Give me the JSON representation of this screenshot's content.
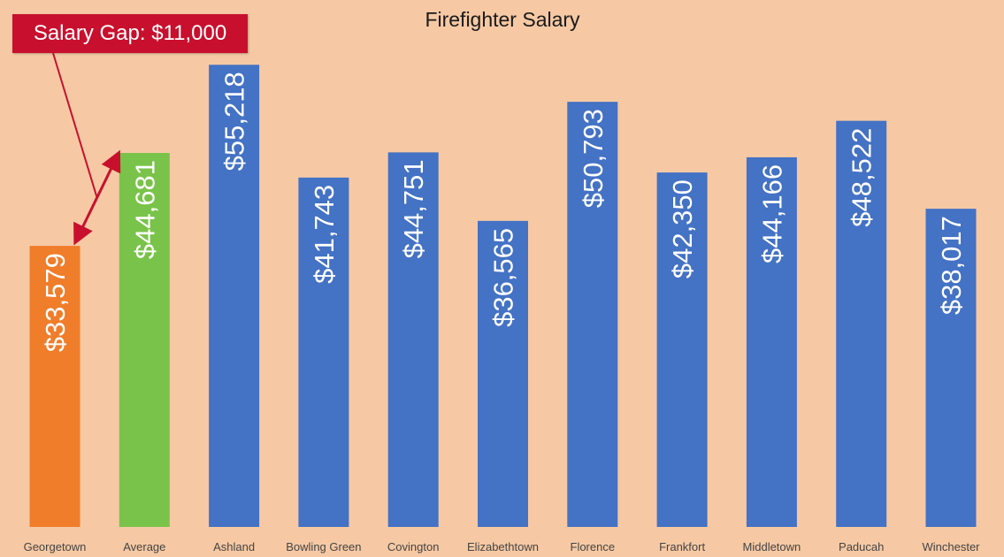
{
  "chart_data": {
    "type": "bar",
    "title": "Firefighter Salary",
    "xlabel": "",
    "ylabel": "",
    "ylim": [
      0,
      60000
    ],
    "grid": false,
    "categories": [
      "Georgetown",
      "Average",
      "Ashland",
      "Bowling Green",
      "Covington",
      "Elizabethtown",
      "Florence",
      "Frankfort",
      "Middletown",
      "Paducah",
      "Winchester"
    ],
    "values": [
      33579,
      44681,
      55218,
      41743,
      44751,
      36565,
      50793,
      42350,
      44166,
      48522,
      38017
    ],
    "data_labels": [
      "$33,579",
      "$44,681",
      "$55,218",
      "$41,743",
      "$44,751",
      "$36,565",
      "$50,793",
      "$42,350",
      "$44,166",
      "$48,522",
      "$38,017"
    ],
    "bar_colors": [
      "#f07d2a",
      "#7ac34a",
      "#4472c4",
      "#4472c4",
      "#4472c4",
      "#4472c4",
      "#4472c4",
      "#4472c4",
      "#4472c4",
      "#4472c4",
      "#4472c4"
    ],
    "annotation": {
      "text": "Salary Gap: $11,000",
      "from_category": "Georgetown",
      "to_category": "Average",
      "color": "#c8102e"
    }
  },
  "colors": {
    "background": "#f6c9a4",
    "label_text": "#ffffff",
    "axis_text": "#444444",
    "title_text": "#1a1a1a"
  }
}
